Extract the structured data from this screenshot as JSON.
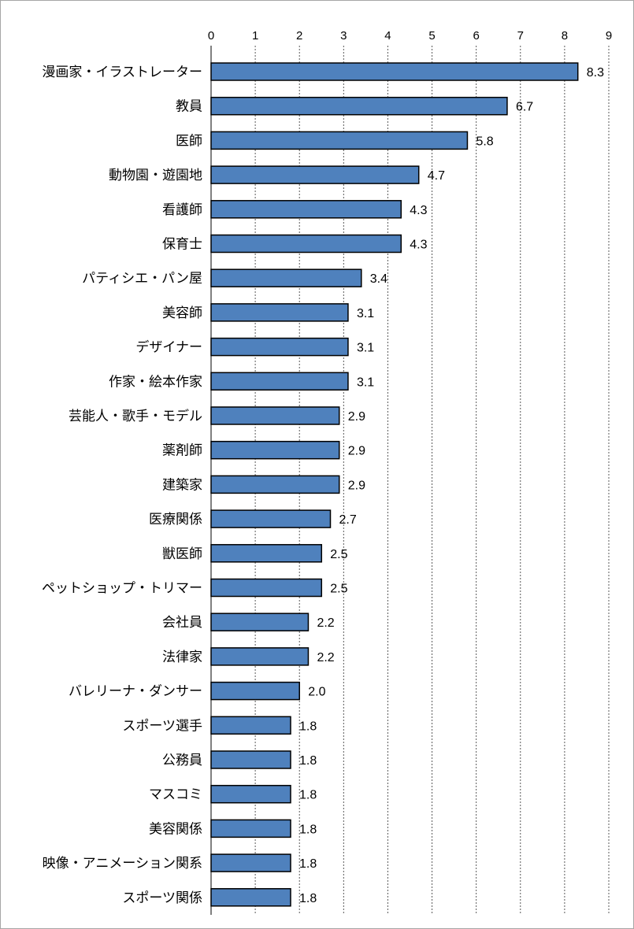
{
  "chart_data": {
    "type": "bar",
    "orientation": "horizontal",
    "title": "",
    "xlabel": "",
    "ylabel": "",
    "xlim": [
      0,
      9
    ],
    "x_ticks": [
      "0",
      "1",
      "2",
      "3",
      "4",
      "5",
      "6",
      "7",
      "8",
      "9"
    ],
    "x_axis_position": "top",
    "grid": "vertical-dashed",
    "legend": "none",
    "bar_color": "#4f81bd",
    "bar_border_color": "#000000",
    "categories": [
      "漫画家・イラストレーター",
      "教員",
      "医師",
      "動物園・遊園地",
      "看護師",
      "保育士",
      "パティシエ・パン屋",
      "美容師",
      "デザイナー",
      "作家・絵本作家",
      "芸能人・歌手・モデル",
      "薬剤師",
      "建築家",
      "医療関係",
      "獣医師",
      "ペットショップ・トリマー",
      "会社員",
      "法律家",
      "バレリーナ・ダンサー",
      "スポーツ選手",
      "公務員",
      "マスコミ",
      "美容関係",
      "映像・アニメーション関系",
      "スポーツ関係"
    ],
    "values": [
      8.3,
      6.7,
      5.8,
      4.7,
      4.3,
      4.3,
      3.4,
      3.1,
      3.1,
      3.1,
      2.9,
      2.9,
      2.9,
      2.7,
      2.5,
      2.5,
      2.2,
      2.2,
      2.0,
      1.8,
      1.8,
      1.8,
      1.8,
      1.8,
      1.8
    ],
    "value_labels": [
      "8.3",
      "6.7",
      "5.8",
      "4.7",
      "4.3",
      "4.3",
      "3.4",
      "3.1",
      "3.1",
      "3.1",
      "2.9",
      "2.9",
      "2.9",
      "2.7",
      "2.5",
      "2.5",
      "2.2",
      "2.2",
      "2.0",
      "1.8",
      "1.8",
      "1.8",
      "1.8",
      "1.8",
      "1.8"
    ]
  }
}
